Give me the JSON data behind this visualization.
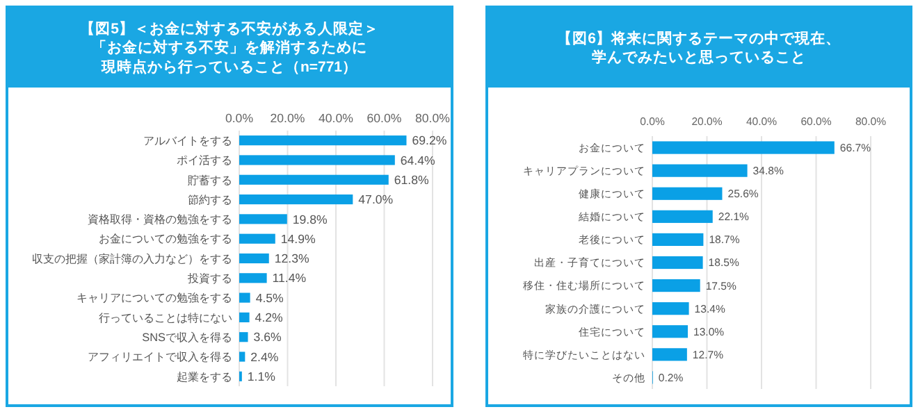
{
  "chart_data": [
    {
      "type": "bar",
      "orientation": "horizontal",
      "title": "【図5】＜お金に対する不安がある人限定＞「お金に対する不安」を解消するために現時点から行っていること（n=771）",
      "color": "#0aa0e6",
      "grid": "x",
      "categories": [
        "アルバイトをする",
        "ポイ活する",
        "貯蓄する",
        "節約する",
        "資格取得・資格の勉強をする",
        "お金についての勉強をする",
        "収支の把握（家計簿の入力など）をする",
        "投資する",
        "キャリアについての勉強をする",
        "行っていることは特にない",
        "SNSで収入を得る",
        "アフィリエイトで収入を得る",
        "起業をする"
      ],
      "values": [
        69.2,
        64.4,
        61.8,
        47.0,
        19.8,
        14.9,
        12.3,
        11.4,
        4.5,
        4.2,
        3.6,
        2.4,
        1.1
      ],
      "value_labels": [
        "69.2%",
        "64.4%",
        "61.8%",
        "47.0%",
        "19.8%",
        "14.9%",
        "12.3%",
        "11.4%",
        "4.5%",
        "4.2%",
        "3.6%",
        "2.4%",
        "1.1%"
      ],
      "xlim": [
        0,
        80
      ],
      "xticks": [
        {
          "value": 0,
          "label": "0.0%"
        },
        {
          "value": 20,
          "label": "20.0%"
        },
        {
          "value": 40,
          "label": "40.0%"
        },
        {
          "value": 60,
          "label": "60.0%"
        },
        {
          "value": 80,
          "label": "80.0%"
        }
      ]
    },
    {
      "type": "bar",
      "orientation": "horizontal",
      "title": "【図6】将来に関するテーマの中で現在、学んでみたいと思っていること",
      "color": "#0aa0e6",
      "grid": "x",
      "categories": [
        "お金について",
        "キャリアプランについて",
        "健康について",
        "結婚について",
        "老後について",
        "出産・子育てについて",
        "移住・住む場所について",
        "家族の介護について",
        "住宅について",
        "特に学びたいことはない",
        "その他"
      ],
      "values": [
        66.7,
        34.8,
        25.6,
        22.1,
        18.7,
        18.5,
        17.5,
        13.4,
        13.0,
        12.7,
        0.2
      ],
      "value_labels": [
        "66.7%",
        "34.8%",
        "25.6%",
        "22.1%",
        "18.7%",
        "18.5%",
        "17.5%",
        "13.4%",
        "13.0%",
        "12.7%",
        "0.2%"
      ],
      "xlim": [
        0,
        80
      ],
      "xticks": [
        {
          "value": 0,
          "label": "0.0%"
        },
        {
          "value": 20,
          "label": "20.0%"
        },
        {
          "value": 40,
          "label": "40.0%"
        },
        {
          "value": 60,
          "label": "60.0%"
        },
        {
          "value": 80,
          "label": "80.0%"
        }
      ]
    }
  ]
}
